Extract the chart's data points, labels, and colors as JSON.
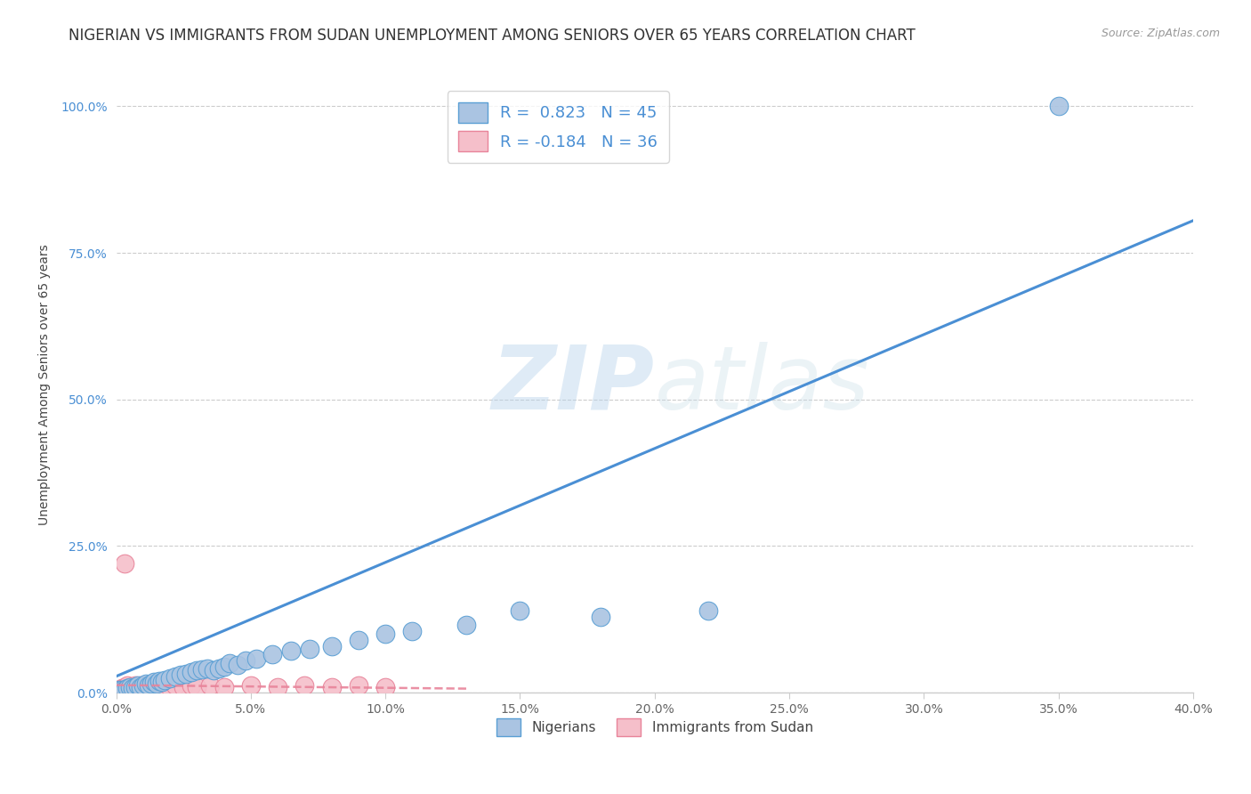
{
  "title": "NIGERIAN VS IMMIGRANTS FROM SUDAN UNEMPLOYMENT AMONG SENIORS OVER 65 YEARS CORRELATION CHART",
  "source": "Source: ZipAtlas.com",
  "ylabel": "Unemployment Among Seniors over 65 years",
  "xmin": 0.0,
  "xmax": 0.4,
  "ymin": 0.0,
  "ymax": 1.05,
  "xtick_labels": [
    "0.0%",
    "5.0%",
    "10.0%",
    "15.0%",
    "20.0%",
    "25.0%",
    "30.0%",
    "35.0%",
    "40.0%"
  ],
  "xtick_vals": [
    0.0,
    0.05,
    0.1,
    0.15,
    0.2,
    0.25,
    0.3,
    0.35,
    0.4
  ],
  "ytick_labels": [
    "0.0%",
    "25.0%",
    "50.0%",
    "75.0%",
    "100.0%"
  ],
  "ytick_vals": [
    0.0,
    0.25,
    0.5,
    0.75,
    1.0
  ],
  "watermark_zip": "ZIP",
  "watermark_atlas": "atlas",
  "nigerian_color": "#aac4e2",
  "nigerian_edge_color": "#5a9fd4",
  "sudan_color": "#f5bfca",
  "sudan_edge_color": "#e8849a",
  "line_nigerian_color": "#4a8fd4",
  "line_sudan_color": "#e8849a",
  "R_nigerian": 0.823,
  "N_nigerian": 45,
  "R_sudan": -0.184,
  "N_sudan": 36,
  "nigerian_x": [
    0.001,
    0.002,
    0.003,
    0.004,
    0.005,
    0.006,
    0.007,
    0.008,
    0.009,
    0.01,
    0.011,
    0.012,
    0.013,
    0.014,
    0.015,
    0.016,
    0.017,
    0.018,
    0.02,
    0.022,
    0.024,
    0.026,
    0.028,
    0.03,
    0.032,
    0.034,
    0.036,
    0.038,
    0.04,
    0.042,
    0.045,
    0.048,
    0.052,
    0.058,
    0.065,
    0.072,
    0.08,
    0.09,
    0.1,
    0.11,
    0.13,
    0.15,
    0.18,
    0.22,
    0.35
  ],
  "nigerian_y": [
    0.005,
    0.005,
    0.005,
    0.008,
    0.01,
    0.008,
    0.01,
    0.012,
    0.01,
    0.012,
    0.015,
    0.013,
    0.015,
    0.018,
    0.016,
    0.02,
    0.018,
    0.022,
    0.025,
    0.028,
    0.03,
    0.032,
    0.035,
    0.038,
    0.04,
    0.042,
    0.038,
    0.042,
    0.045,
    0.05,
    0.048,
    0.055,
    0.058,
    0.065,
    0.072,
    0.075,
    0.08,
    0.09,
    0.1,
    0.105,
    0.115,
    0.14,
    0.13,
    0.14,
    1.0
  ],
  "sudan_x": [
    0.001,
    0.002,
    0.002,
    0.003,
    0.003,
    0.004,
    0.004,
    0.005,
    0.005,
    0.006,
    0.007,
    0.007,
    0.008,
    0.009,
    0.01,
    0.011,
    0.012,
    0.013,
    0.014,
    0.015,
    0.016,
    0.018,
    0.02,
    0.022,
    0.025,
    0.028,
    0.03,
    0.035,
    0.04,
    0.05,
    0.06,
    0.07,
    0.08,
    0.09,
    0.1,
    0.003
  ],
  "sudan_y": [
    0.005,
    0.008,
    0.005,
    0.01,
    0.006,
    0.008,
    0.012,
    0.01,
    0.008,
    0.01,
    0.012,
    0.008,
    0.01,
    0.012,
    0.01,
    0.012,
    0.01,
    0.012,
    0.01,
    0.012,
    0.01,
    0.012,
    0.01,
    0.012,
    0.01,
    0.012,
    0.01,
    0.012,
    0.01,
    0.012,
    0.01,
    0.012,
    0.01,
    0.012,
    0.01,
    0.22
  ],
  "legend_label_nigerian": "R =  0.823   N = 45",
  "legend_label_sudan": "R = -0.184   N = 36",
  "bottom_legend_nigerian": "Nigerians",
  "bottom_legend_sudan": "Immigrants from Sudan",
  "title_fontsize": 12,
  "label_fontsize": 10,
  "tick_fontsize": 10,
  "legend_fontsize": 13
}
